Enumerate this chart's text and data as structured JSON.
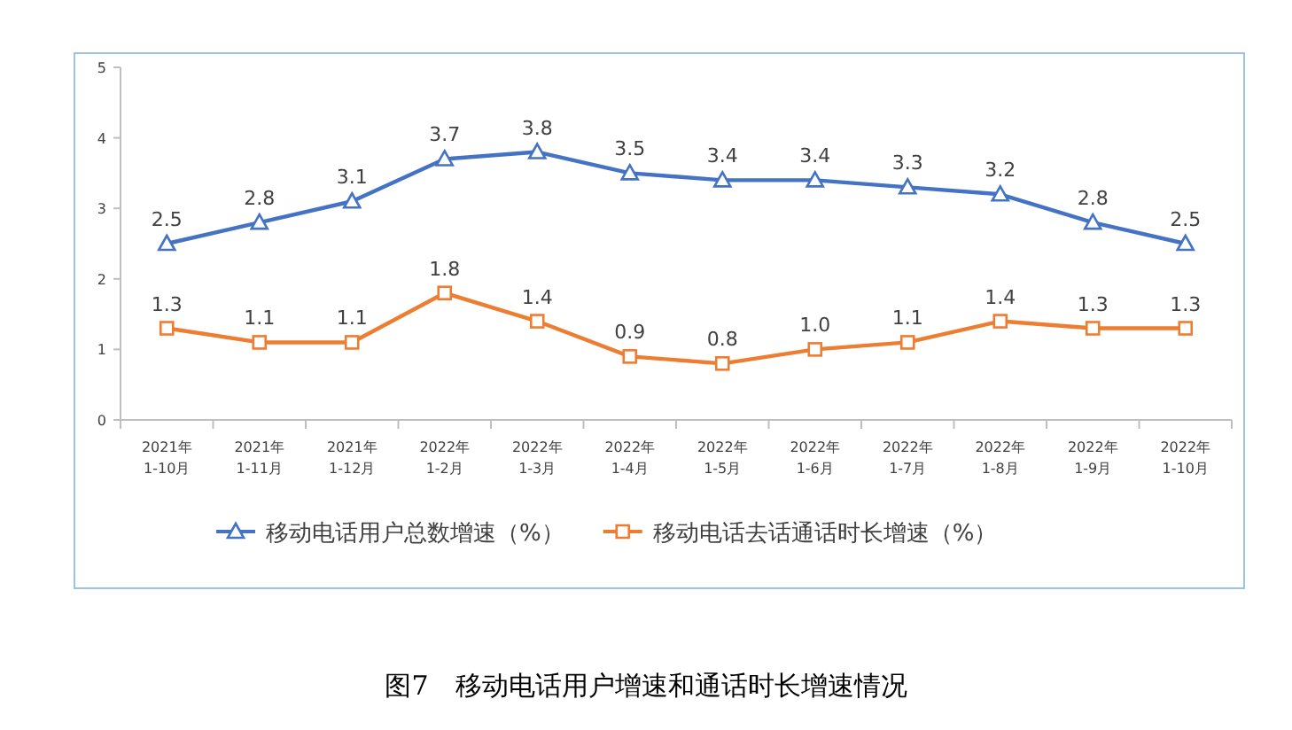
{
  "chart_data": {
    "type": "line",
    "title": "图7　移动电话用户增速和通话时长增速情况",
    "categories": [
      "2021年\n1-10月",
      "2021年\n1-11月",
      "2021年\n1-12月",
      "2022年\n1-2月",
      "2022年\n1-3月",
      "2022年\n1-4月",
      "2022年\n1-5月",
      "2022年\n1-6月",
      "2022年\n1-7月",
      "2022年\n1-8月",
      "2022年\n1-9月",
      "2022年\n1-10月"
    ],
    "series": [
      {
        "name": "移动电话用户总数增速（%）",
        "color": "#4472c4",
        "marker": "triangle",
        "values": [
          2.5,
          2.8,
          3.1,
          3.7,
          3.8,
          3.5,
          3.4,
          3.4,
          3.3,
          3.2,
          2.8,
          2.5
        ],
        "value_labels": [
          "2.5",
          "2.8",
          "3.1",
          "3.7",
          "3.8",
          "3.5",
          "3.4",
          "3.4",
          "3.3",
          "3.2",
          "2.8",
          "2.5"
        ]
      },
      {
        "name": "移动电话去话通话时长增速（%）",
        "color": "#ed7d31",
        "marker": "square",
        "values": [
          1.3,
          1.1,
          1.1,
          1.8,
          1.4,
          0.9,
          0.8,
          1.0,
          1.1,
          1.4,
          1.3,
          1.3
        ],
        "value_labels": [
          "1.3",
          "1.1",
          "1.1",
          "1.8",
          "1.4",
          "0.9",
          "0.8",
          "1.0",
          "1.1",
          "1.4",
          "1.3",
          "1.3"
        ]
      }
    ],
    "ylim": [
      0,
      5
    ],
    "yticks": [
      0,
      1,
      2,
      3,
      4,
      5
    ],
    "legend": "bottom"
  }
}
